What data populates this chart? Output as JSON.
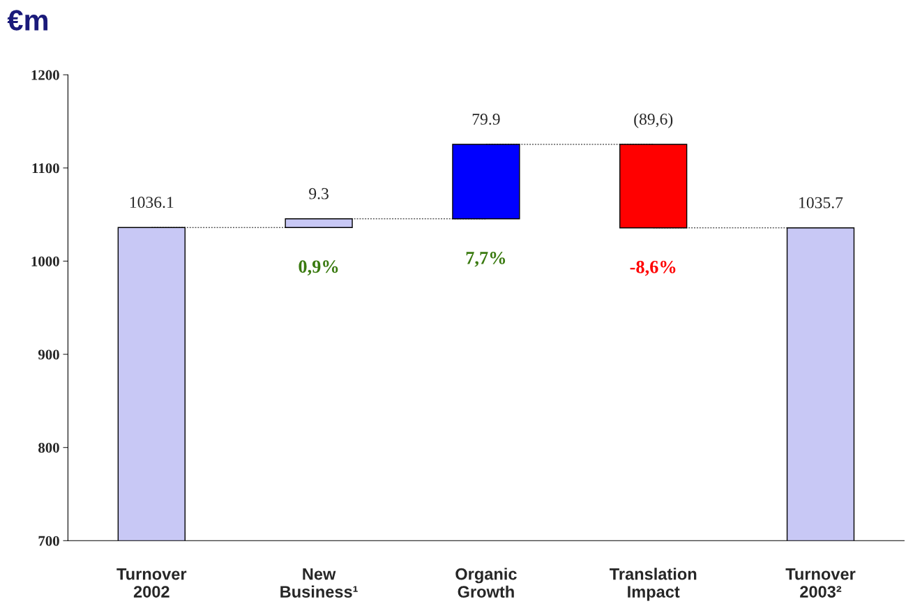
{
  "chart_data": {
    "type": "bar",
    "title": "€m",
    "categories": [
      "Turnover\n2002",
      "New\nBusiness¹",
      "Organic\nGrowth",
      "Translation\nImpact",
      "Turnover\n2003²"
    ],
    "values": [
      1036.1,
      9.3,
      79.9,
      -89.6,
      1035.7
    ],
    "base": [
      0,
      1036.1,
      1045.4,
      1125.3,
      0
    ],
    "colors": [
      "#c8c8f5",
      "#c8c8f5",
      "#0000ff",
      "#ff0000",
      "#c8c8f5"
    ],
    "value_labels": [
      "1036.1",
      "9.3",
      "79.9",
      "(89,6)",
      "1035.7"
    ],
    "annotations": [
      "0,9%",
      "7,7%",
      "-8,6%"
    ],
    "ylim": [
      700,
      1200
    ],
    "yticks": [
      700,
      800,
      900,
      1000,
      1100,
      1200
    ],
    "grid": false
  }
}
